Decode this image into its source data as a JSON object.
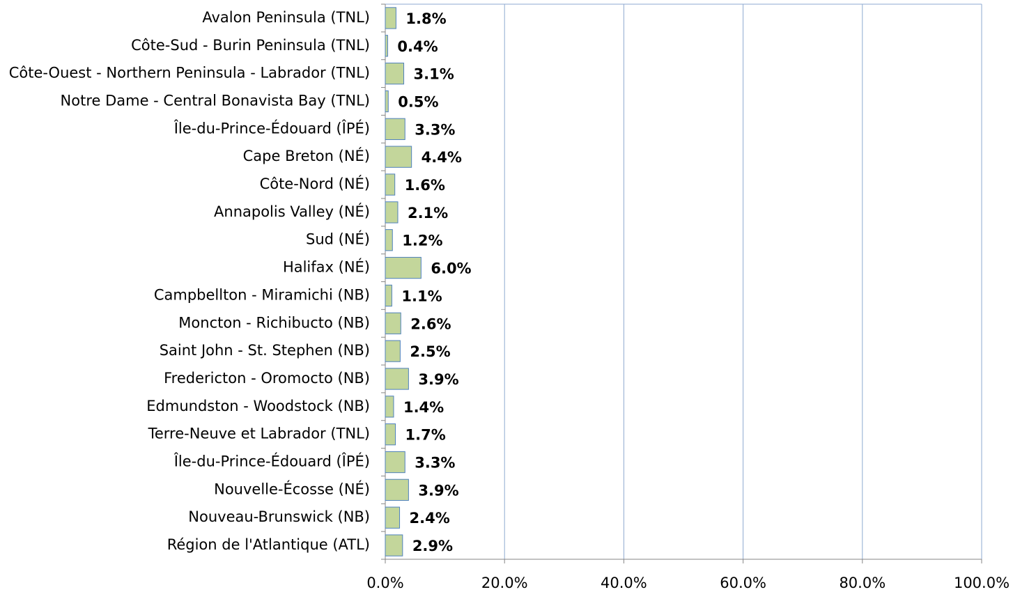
{
  "chart_data": {
    "type": "bar",
    "orientation": "horizontal",
    "categories": [
      "Avalon Peninsula (TNL)",
      "Côte-Sud - Burin Peninsula (TNL)",
      "Côte-Ouest - Northern Peninsula - Labrador (TNL)",
      "Notre Dame - Central Bonavista Bay (TNL)",
      "Île-du-Prince-Édouard (ÎPÉ)",
      "Cape Breton (NÉ)",
      "Côte-Nord (NÉ)",
      "Annapolis Valley (NÉ)",
      "Sud (NÉ)",
      "Halifax (NÉ)",
      "Campbellton - Miramichi (NB)",
      "Moncton - Richibucto (NB)",
      "Saint John - St. Stephen (NB)",
      "Fredericton - Oromocto (NB)",
      "Edmundston - Woodstock (NB)",
      "Terre-Neuve et Labrador (TNL)",
      "Île-du-Prince-Édouard (ÎPÉ)",
      "Nouvelle-Écosse (NÉ)",
      "Nouveau-Brunswick (NB)",
      "Région de l'Atlantique (ATL)"
    ],
    "values": [
      1.8,
      0.4,
      3.1,
      0.5,
      3.3,
      4.4,
      1.6,
      2.1,
      1.2,
      6.0,
      1.1,
      2.6,
      2.5,
      3.9,
      1.4,
      1.7,
      3.3,
      3.9,
      2.4,
      2.9
    ],
    "value_labels": [
      "1.8%",
      "0.4%",
      "3.1%",
      "0.5%",
      "3.3%",
      "4.4%",
      "1.6%",
      "2.1%",
      "1.2%",
      "6.0%",
      "1.1%",
      "2.6%",
      "2.5%",
      "3.9%",
      "1.4%",
      "1.7%",
      "3.3%",
      "3.9%",
      "2.4%",
      "2.9%"
    ],
    "color": "#c3d69b",
    "edge_color": "#4f81bd",
    "xlim": [
      0,
      100
    ],
    "xticks": [
      {
        "value": 0,
        "label": "0.0%"
      },
      {
        "value": 20,
        "label": "20.0%"
      },
      {
        "value": 40,
        "label": "40.0%"
      },
      {
        "value": 60,
        "label": "60.0%"
      },
      {
        "value": 80,
        "label": "80.0%"
      },
      {
        "value": 100,
        "label": "100.0%"
      }
    ],
    "grid": true
  }
}
